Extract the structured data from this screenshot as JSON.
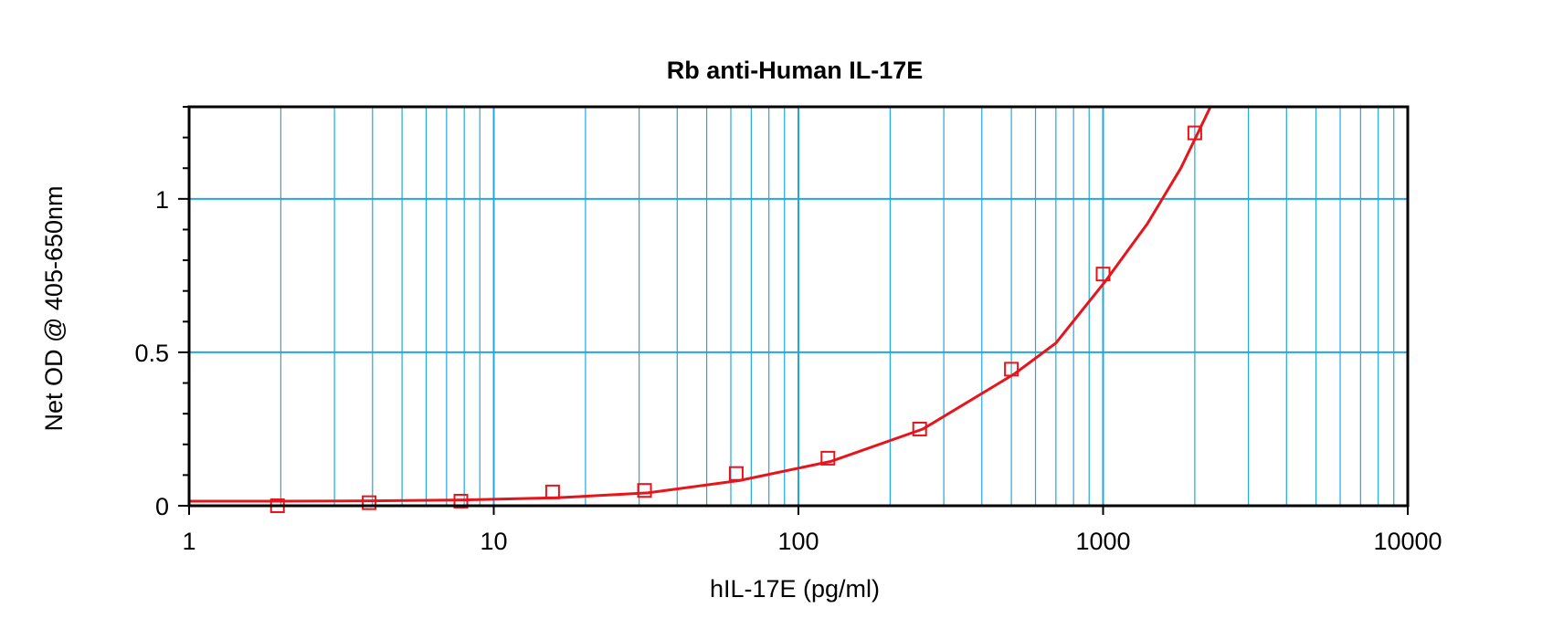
{
  "chart_data": {
    "type": "scatter",
    "title": "Rb anti-Human IL-17E",
    "xlabel": "hIL-17E (pg/ml)",
    "ylabel": "Net OD @ 405-650nm",
    "x_scale": "log",
    "xlim": [
      1,
      10000
    ],
    "ylim": [
      0,
      1.3
    ],
    "x_ticks": [
      1,
      10,
      100,
      1000,
      10000
    ],
    "x_tick_labels": [
      "1",
      "10",
      "100",
      "1000",
      "10000"
    ],
    "y_ticks": [
      0,
      0.5,
      1
    ],
    "y_tick_labels": [
      "0",
      "0.5",
      "1"
    ],
    "grid": true,
    "series": [
      {
        "kind": "points",
        "marker": "open-square",
        "color": "#e8141c",
        "x": [
          1.95,
          3.9,
          7.8,
          15.6,
          31.25,
          62.5,
          125,
          250,
          500,
          1000,
          2000
        ],
        "y": [
          0.0,
          0.01,
          0.015,
          0.045,
          0.05,
          0.105,
          0.155,
          0.25,
          0.445,
          0.755,
          1.215
        ]
      },
      {
        "kind": "fit-line",
        "color": "#e8141c",
        "x": [
          1,
          2,
          4,
          8,
          16,
          32,
          64,
          128,
          256,
          512,
          700,
          1024,
          1400,
          1800,
          2048,
          2250
        ],
        "y": [
          0.015,
          0.015,
          0.016,
          0.019,
          0.026,
          0.042,
          0.082,
          0.145,
          0.25,
          0.43,
          0.53,
          0.735,
          0.92,
          1.1,
          1.215,
          1.3
        ]
      }
    ],
    "colors": {
      "grid": "#1fa8e0",
      "frame": "#000000",
      "series": "#e8141c"
    }
  }
}
